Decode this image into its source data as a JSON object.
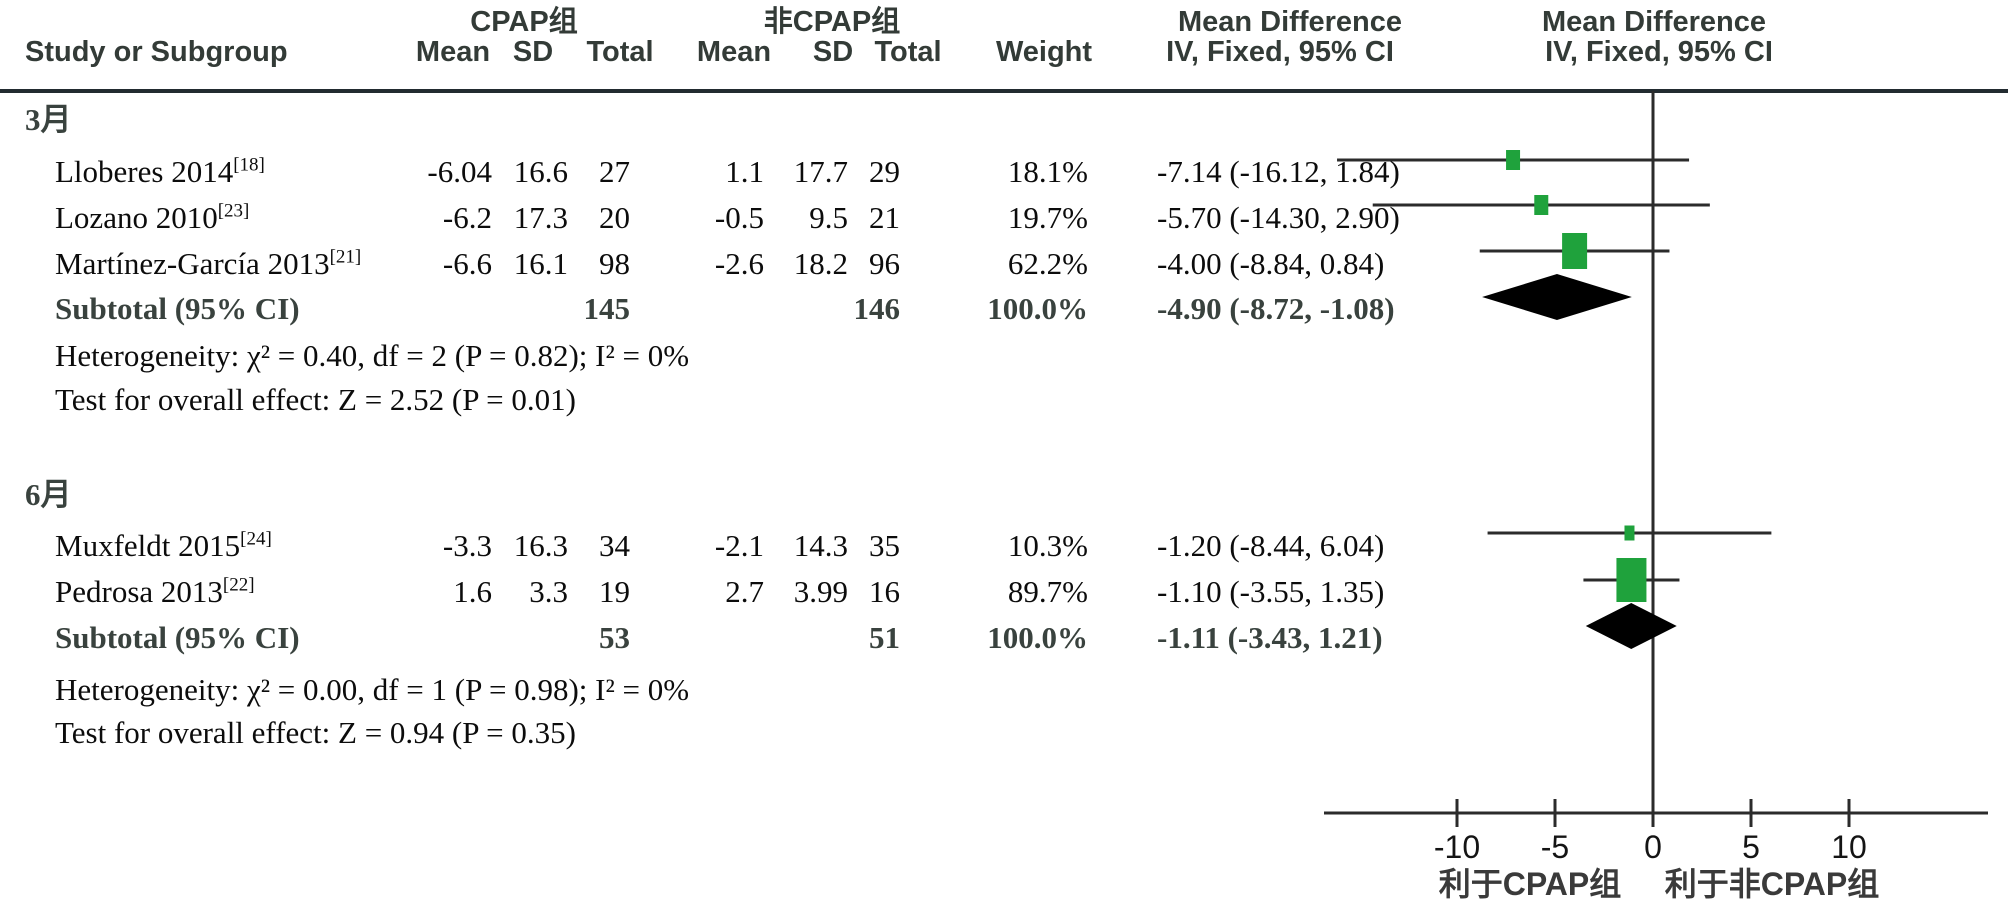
{
  "header": {
    "col_study": "Study or Subgroup",
    "group1_title": "CPAP组",
    "group2_title": "非CPAP组",
    "group1_cols": {
      "mean": "Mean",
      "sd": "SD",
      "total": "Total"
    },
    "group2_cols": {
      "mean": "Mean",
      "sd": "SD",
      "total": "Total"
    },
    "col_weight": "Weight",
    "md_left": {
      "title": "Mean Difference",
      "subtitle": "IV, Fixed, 95% CI"
    },
    "md_right": {
      "title": "Mean Difference",
      "subtitle": "IV, Fixed, 95% CI"
    }
  },
  "sections": [
    {
      "label": "3月",
      "studies": [
        {
          "name": "Lloberes 2014",
          "ref": "[18]",
          "mean1": "-6.04",
          "sd1": "16.6",
          "total1": "27",
          "mean2": "1.1",
          "sd2": "17.7",
          "total2": "29",
          "weight": "18.1%",
          "ci_text": "-7.14 (-16.12, 1.84)"
        },
        {
          "name": "Lozano 2010",
          "ref": "[23]",
          "mean1": "-6.2",
          "sd1": "17.3",
          "total1": "20",
          "mean2": "-0.5",
          "sd2": "9.5",
          "total2": "21",
          "weight": "19.7%",
          "ci_text": "-5.70 (-14.30, 2.90)"
        },
        {
          "name": "Martínez-García 2013",
          "ref": "[21]",
          "mean1": "-6.6",
          "sd1": "16.1",
          "total1": "98",
          "mean2": "-2.6",
          "sd2": "18.2",
          "total2": "96",
          "weight": "62.2%",
          "ci_text": "-4.00 (-8.84, 0.84)"
        }
      ],
      "subtotal": {
        "label": "Subtotal (95% CI)",
        "total1": "145",
        "total2": "146",
        "weight": "100.0%",
        "ci_text": "-4.90 (-8.72, -1.08)"
      },
      "heterogeneity": "Heterogeneity: χ² = 0.40, df = 2 (P = 0.82); I² = 0%",
      "overall_effect": "Test for overall effect: Z = 2.52 (P = 0.01)"
    },
    {
      "label": "6月",
      "studies": [
        {
          "name": "Muxfeldt 2015",
          "ref": "[24]",
          "mean1": "-3.3",
          "sd1": "16.3",
          "total1": "34",
          "mean2": "-2.1",
          "sd2": "14.3",
          "total2": "35",
          "weight": "10.3%",
          "ci_text": "-1.20 (-8.44, 6.04)"
        },
        {
          "name": "Pedrosa 2013",
          "ref": "[22]",
          "mean1": "1.6",
          "sd1": "3.3",
          "total1": "19",
          "mean2": "2.7",
          "sd2": "3.99",
          "total2": "16",
          "weight": "89.7%",
          "ci_text": "-1.10 (-3.55, 1.35)"
        }
      ],
      "subtotal": {
        "label": "Subtotal (95% CI)",
        "total1": "53",
        "total2": "51",
        "weight": "100.0%",
        "ci_text": "-1.11 (-3.43, 1.21)"
      },
      "heterogeneity": "Heterogeneity: χ² = 0.00, df = 1 (P = 0.98); I² = 0%",
      "overall_effect": "Test for overall effect: Z = 0.94 (P = 0.35)"
    }
  ],
  "axis": {
    "left_label": "利于CPAP组",
    "right_label": "利于非CPAP组"
  },
  "chart_data": {
    "type": "forest",
    "effect_measure": "Mean Difference, IV, Fixed, 95% CI",
    "x_ticks": [
      -10,
      -5,
      0,
      5,
      10
    ],
    "x_axis_range": [
      -16.8,
      17.1
    ],
    "zero_line": 0,
    "favours_left": "利于CPAP组",
    "favours_right": "利于非CPAP组",
    "colors": {
      "marker": "#1fa23c",
      "diamond": "#000000",
      "line": "#2b2b2b"
    },
    "rows": [
      {
        "kind": "study",
        "section": "3月",
        "label": "Lloberes 2014",
        "estimate": -7.14,
        "ci_low": -16.12,
        "ci_high": 1.84,
        "weight": 18.1
      },
      {
        "kind": "study",
        "section": "3月",
        "label": "Lozano 2010",
        "estimate": -5.7,
        "ci_low": -14.3,
        "ci_high": 2.9,
        "weight": 19.7
      },
      {
        "kind": "study",
        "section": "3月",
        "label": "Martínez-García 2013",
        "estimate": -4.0,
        "ci_low": -8.84,
        "ci_high": 0.84,
        "weight": 62.2
      },
      {
        "kind": "subtotal",
        "section": "3月",
        "label": "Subtotal (95% CI)",
        "estimate": -4.9,
        "ci_low": -8.72,
        "ci_high": -1.08,
        "weight": 100.0
      },
      {
        "kind": "study",
        "section": "6月",
        "label": "Muxfeldt 2015",
        "estimate": -1.2,
        "ci_low": -8.44,
        "ci_high": 6.04,
        "weight": 10.3
      },
      {
        "kind": "study",
        "section": "6月",
        "label": "Pedrosa 2013",
        "estimate": -1.1,
        "ci_low": -3.55,
        "ci_high": 1.35,
        "weight": 89.7
      },
      {
        "kind": "subtotal",
        "section": "6月",
        "label": "Subtotal (95% CI)",
        "estimate": -1.11,
        "ci_low": -3.43,
        "ci_high": 1.21,
        "weight": 100.0
      }
    ]
  }
}
